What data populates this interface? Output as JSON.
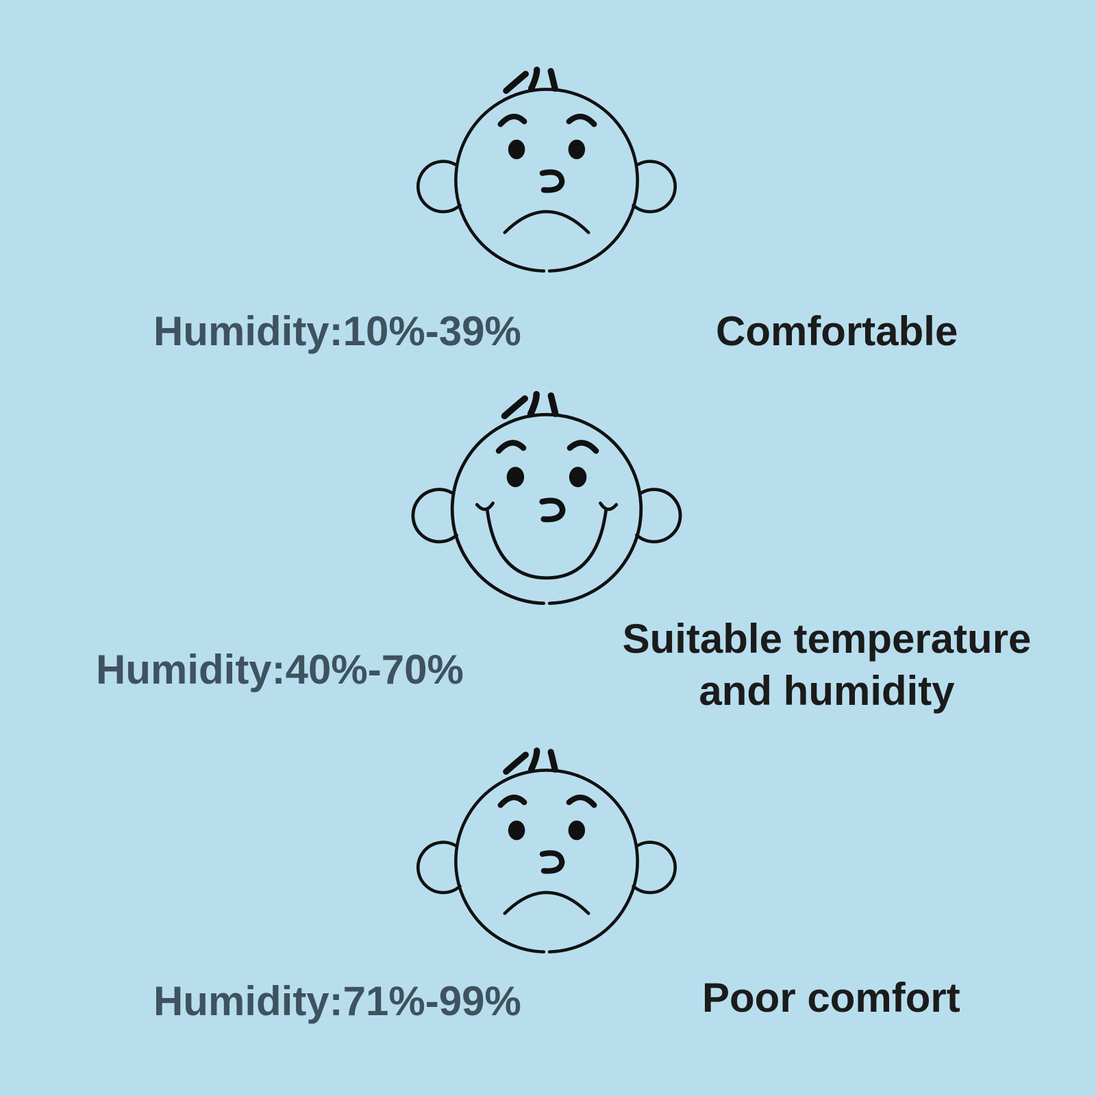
{
  "background_color": "#b8deee",
  "levels": [
    {
      "face": "sad-face-icon",
      "humidity": "Humidity:10%-39%",
      "label": "Comfortable"
    },
    {
      "face": "smiling-face-icon",
      "humidity": "Humidity:40%-70%",
      "label_line1": "Suitable temperature",
      "label_line2": "and humidity"
    },
    {
      "face": "sad-face-icon",
      "humidity": "Humidity:71%-99%",
      "label": "Poor comfort"
    }
  ]
}
